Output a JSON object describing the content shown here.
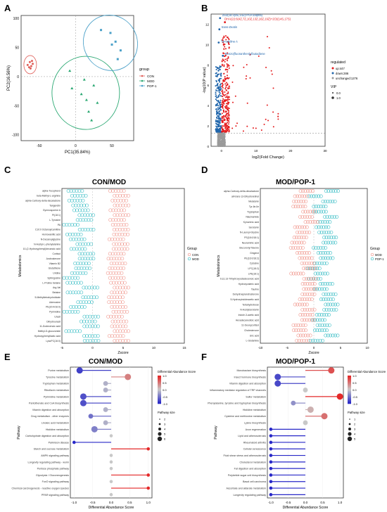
{
  "panel_letters": [
    "A",
    "B",
    "C",
    "D",
    "E",
    "F"
  ],
  "titles": {
    "C": "CON/MOD",
    "D": "MOD/POP-1",
    "E": "CON/MOD",
    "F": "MOD/POP-1"
  },
  "colors": {
    "con": "#e0605a",
    "mod": "#2aa872",
    "pop": "#4aa0c8",
    "up": "#e41a1c",
    "down": "#2166ac",
    "unchanged": "#9a9a9a",
    "dumb_con": "#f0948a",
    "dumb_mod": "#35bcc4"
  },
  "chart_data": [
    {
      "panel": "A",
      "type": "scatter",
      "xlabel": "PC1(35.84%)",
      "ylabel": "PC2(16.56%)",
      "xlim": [
        -75,
        80
      ],
      "ylim": [
        -110,
        105
      ],
      "x_ticks": [
        -50,
        0,
        50
      ],
      "y_ticks": [
        -100,
        -50,
        0,
        50,
        100
      ],
      "legend": {
        "title": "group",
        "entries": [
          "CON",
          "MOD",
          "POP-1"
        ],
        "position": "right"
      },
      "series": [
        {
          "name": "CON",
          "color": "#e0605a",
          "points": [
            [
              -66,
              20
            ],
            [
              -63,
              25
            ],
            [
              -61,
              18
            ],
            [
              -59,
              22
            ],
            [
              -64,
              16
            ],
            [
              -60,
              27
            ],
            [
              -62,
              14
            ]
          ]
        },
        {
          "name": "MOD",
          "color": "#2aa872",
          "points": [
            [
              -8,
              10
            ],
            [
              12,
              -5
            ],
            [
              25,
              -15
            ],
            [
              8,
              -30
            ],
            [
              30,
              -45
            ],
            [
              18,
              -60
            ],
            [
              22,
              -75
            ],
            [
              -5,
              -20
            ],
            [
              15,
              -40
            ]
          ]
        },
        {
          "name": "POP-1",
          "color": "#4aa0c8",
          "points": [
            [
              35,
              80
            ],
            [
              48,
              75
            ],
            [
              55,
              60
            ],
            [
              62,
              45
            ],
            [
              58,
              30
            ],
            [
              50,
              55
            ]
          ]
        }
      ]
    },
    {
      "panel": "B",
      "type": "scatter",
      "xlabel": "log2(Fold Change)",
      "ylabel": "-log10(P value)",
      "xlim": [
        -3,
        30
      ],
      "ylim": [
        0,
        13
      ],
      "x_ticks": [
        0,
        10,
        20,
        30
      ],
      "y_ticks": [
        0,
        2,
        4,
        6,
        8,
        10,
        12
      ],
      "annotations": [
        "DHA(22:6(4Z,7Z,10Z,13Z,16Z,19Z)+2O)(14S,17S)",
        "2S3(16:3(4E,14Z)-PGF2alpha)",
        "trans-Zeatin",
        "Tomatidine A",
        "Benzo(fluoranthen)ylbutadiene"
      ],
      "legend": {
        "title": "regulated",
        "entries": [
          "up:447",
          "down:286",
          "unchanged:1276"
        ],
        "vip_title": "VIP",
        "vip_entries": [
          "0.0",
          "1.0"
        ],
        "position": "right"
      }
    },
    {
      "panel": "C",
      "type": "scatter",
      "title": "CON/MOD",
      "xlabel": "Zscore",
      "ylabel": "Metabolomics",
      "xlim": [
        -5,
        15
      ],
      "x_ticks": [
        -5,
        0,
        5,
        10,
        15
      ],
      "legend": {
        "title": "Group",
        "entries": [
          "CON",
          "MOD"
        ]
      },
      "metabolites": [
        "alpha-Tocopherol",
        "beta-Methyl-L-arginine",
        "alpha-Carboxy-delta-decalactone",
        "Tangeretin",
        "Gymnosporine A",
        "PI(18:1)",
        "L-Tyrosine",
        "PA",
        "C10:0 Octanoylcarnitine",
        "Homovanillic acid",
        "N-Decanoylglycine",
        "N-Acetyl-L-phenylalanine",
        "10-(2-Hydroxyphenyl)decanoic acid",
        "Cortisol",
        "Androsterone",
        "Vitamin B2",
        "Glutathione",
        "Uridine",
        "Sphingosine",
        "L-Proline betaine",
        "Arg-Val",
        "Betaine",
        "5-Methyltetrahydrofolate",
        "Adenosine",
        "PE(20:4/16:0)",
        "Pyrimidine",
        "Uracil",
        "Dihydrouracil",
        "11-Dodecenoic acid",
        "Methyl-D-glucuronide",
        "Hydroxyphenyllactic acid",
        "LysoPC(16:0)"
      ]
    },
    {
      "panel": "D",
      "type": "scatter",
      "title": "MOD/POP-1",
      "xlabel": "Zscore",
      "ylabel": "Metabolomics",
      "xlim": [
        -10,
        10
      ],
      "x_ticks": [
        -10,
        -5,
        0,
        5,
        10
      ],
      "legend": {
        "title": "Group",
        "entries": [
          "MOD",
          "POP-1"
        ]
      },
      "metabolites": [
        "alpha-Carboxy-delta-decalactone",
        "all-trans-13-Dihydroretinol",
        "Melatonin",
        "Tyr-Ile-Ile",
        "Tryptophan",
        "Niacinamide",
        "Kynurenic acid",
        "Serotonin",
        "N-Lauroyl-Glycine",
        "PS(18:0/18:1)",
        "Neuraminic acid",
        "Glucuronyl flavone",
        "Gingerol",
        "PE(16:0/18:2)",
        "Cytosine",
        "LPC(18:2)",
        "LPE(18:1)",
        "9,12,13-Trihydroxyoctadecenoic acid",
        "Hydroxyvaleric acid",
        "Taurine",
        "Dehydroepiandrosterone",
        "5-Hydroxyindoleacetic acid",
        "Tetrahydrofuran",
        "N-Acetylserotonin",
        "Indole-3-acetic acid",
        "Hexadecanedioic acid",
        "11-Deoxycortisol",
        "Cholestenone",
        "Uric acid",
        "L-Glutamine"
      ]
    },
    {
      "panel": "E",
      "type": "scatter",
      "title": "CON/MOD",
      "xlabel": "Differential Abundance Score",
      "ylabel": "Pathway",
      "xlim": [
        -1.1,
        1.1
      ],
      "x_ticks": [
        -1.0,
        -0.5,
        0.0,
        0.5,
        1.0
      ],
      "colorbar_title": "Differential Abundance Score",
      "colorbar_ticks": [
        "1.0",
        "0.5",
        "0.0",
        "-0.5",
        "-1.0"
      ],
      "size_title": "Pathway size",
      "size_entries": [
        "2",
        "3",
        "4",
        "5",
        "6"
      ],
      "pathways": [
        "Purine metabolism",
        "Tyrosine metabolism",
        "Tryptophan metabolism",
        "Riboflavin metabolism",
        "Pyrimidine metabolism",
        "Pantothenate and CoA biosynthesis",
        "Vitamin digestion and absorption",
        "Drug metabolism - other enzymes",
        "Linoleic acid metabolism",
        "Histidine metabolism",
        "Carbohydrate digestion and absorption",
        "Parkinson disease",
        "Starch and sucrose metabolism",
        "AMPK signaling pathway",
        "Longevity regulating pathway - worm",
        "Pentose phosphate pathway",
        "Glycolysis / Gluconeogenesis",
        "FoxO signaling pathway",
        "Chemical carcinogenesis - reactive oxygen species",
        "PPAR signaling pathway"
      ],
      "values": [
        -0.85,
        0.45,
        -0.15,
        -0.15,
        -0.75,
        -0.75,
        -0.15,
        -0.55,
        -0.15,
        -0.45,
        0.0,
        -1.0,
        1.0,
        0.0,
        0.0,
        0.0,
        1.0,
        0.0,
        1.0,
        0.0
      ],
      "sizes": [
        3,
        3,
        2,
        2,
        3,
        3,
        2,
        2,
        2,
        3,
        1,
        1,
        1,
        1,
        1,
        1,
        1,
        1,
        1,
        1
      ]
    },
    {
      "panel": "F",
      "type": "scatter",
      "title": "MOD/POP-1",
      "xlabel": "Differential Abundance Score",
      "ylabel": "Pathway",
      "xlim": [
        -1.1,
        1.1
      ],
      "x_ticks": [
        -1.0,
        -0.5,
        0.0,
        0.5,
        1.0
      ],
      "colorbar_title": "Differential Abundance Score",
      "colorbar_ticks": [
        "1.0",
        "0.5",
        "0.0",
        "-0.5",
        "-1.0"
      ],
      "size_title": "Pathway size",
      "size_entries": [
        "1",
        "2",
        "3",
        "4",
        "5"
      ],
      "pathways": [
        "Monobactam biosynthesis",
        "Insect hormone biosynthesis",
        "Vitamin digestion and absorption",
        "Inflammatory mediator regulation of TRP channels",
        "Sulfur metabolism",
        "Phenylalanine, tyrosine and tryptophan biosynthesis",
        "Histidine metabolism",
        "Cysteine and methionine metabolism",
        "Lysine biosynthesis",
        "Axon regeneration",
        "Lipid and atherosclerosis",
        "Rheumatoid arthritis",
        "Cellular senescence",
        "Fluid shear stress and atherosclerosis",
        "Cholesterol metabolism",
        "Fat digestion and absorption",
        "Polyketide sugar unit biosynthesis",
        "Basal cell carcinoma",
        "Ascorbate and aldarate metabolism",
        "Longevity regulating pathway"
      ],
      "values": [
        0.75,
        -0.8,
        -0.8,
        0.0,
        1.0,
        -0.35,
        0.15,
        0.55,
        0.0,
        -1.0,
        -1.0,
        -1.0,
        -1.0,
        -1.0,
        -1.0,
        -1.0,
        -1.0,
        -1.0,
        -1.0,
        -1.0
      ],
      "sizes": [
        3,
        3,
        3,
        2,
        3,
        2,
        3,
        3,
        2,
        1,
        1,
        1,
        1,
        1,
        1,
        1,
        1,
        1,
        1,
        1
      ]
    }
  ]
}
